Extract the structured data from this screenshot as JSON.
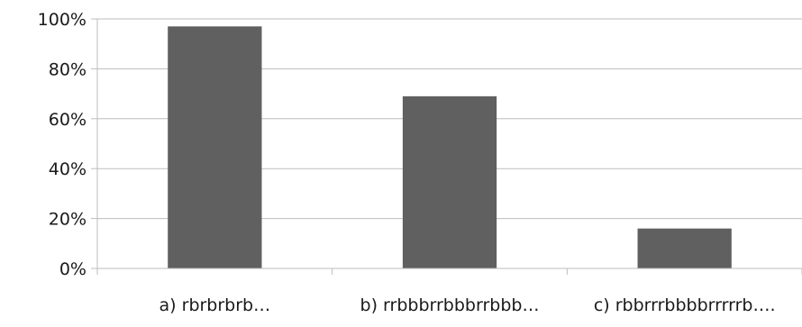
{
  "chart_data": {
    "type": "bar",
    "categories": [
      "a) rbrbrbrb…",
      "b) rrbbbrrbbbrrbbb…",
      "c) rbbrrrbbbbrrrrrb…."
    ],
    "values": [
      97,
      69,
      16
    ],
    "y_tick_labels": [
      "0%",
      "20%",
      "40%",
      "60%",
      "80%",
      "100%"
    ],
    "ylim": [
      0,
      100
    ],
    "grid": true,
    "legend": "none",
    "bar_color": "#606060",
    "grid_color": "#bdbdbd"
  }
}
